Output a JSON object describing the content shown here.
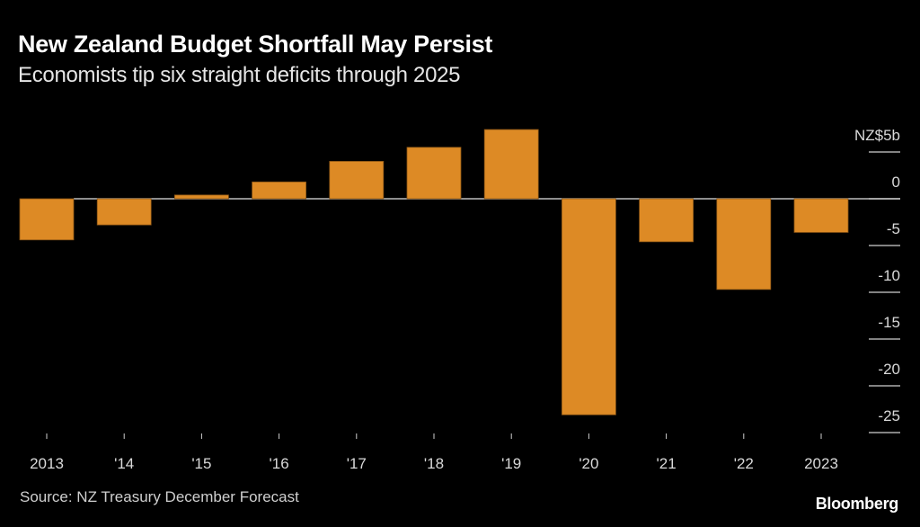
{
  "header": {
    "title": "New Zealand Budget Shortfall May Persist",
    "subtitle": "Economists tip six straight deficits through 2025"
  },
  "footer": {
    "source": "Source: NZ Treasury December Forecast",
    "brand": "Bloomberg"
  },
  "colors": {
    "bar": "#DD8A25",
    "bar_edge": "#8a5516",
    "zero_line": "#bdbdbd",
    "tick": "#cfcfcf"
  },
  "chart_data": {
    "type": "bar",
    "title": "New Zealand Budget Shortfall May Persist",
    "subtitle": "Economists tip six straight deficits through 2025",
    "xlabel": "",
    "ylabel": "NZ$ billions",
    "unit_label": "NZ$5b",
    "categories": [
      "2013",
      "'14",
      "'15",
      "'16",
      "'17",
      "'18",
      "'19",
      "'20",
      "'21",
      "'22",
      "2023"
    ],
    "values": [
      -4.4,
      -2.8,
      0.4,
      1.8,
      4.0,
      5.5,
      7.4,
      -23.1,
      -4.6,
      -9.7,
      -3.6
    ],
    "ylim": [
      -26,
      7.5
    ],
    "yticks": [
      5,
      0,
      -5,
      -10,
      -15,
      -20,
      -25
    ],
    "ytick_labels": [
      "NZ$5b",
      "0",
      "-5",
      "-10",
      "-15",
      "-20",
      "-25"
    ],
    "y_axis_side": "right",
    "grid": false,
    "legend": "none"
  }
}
